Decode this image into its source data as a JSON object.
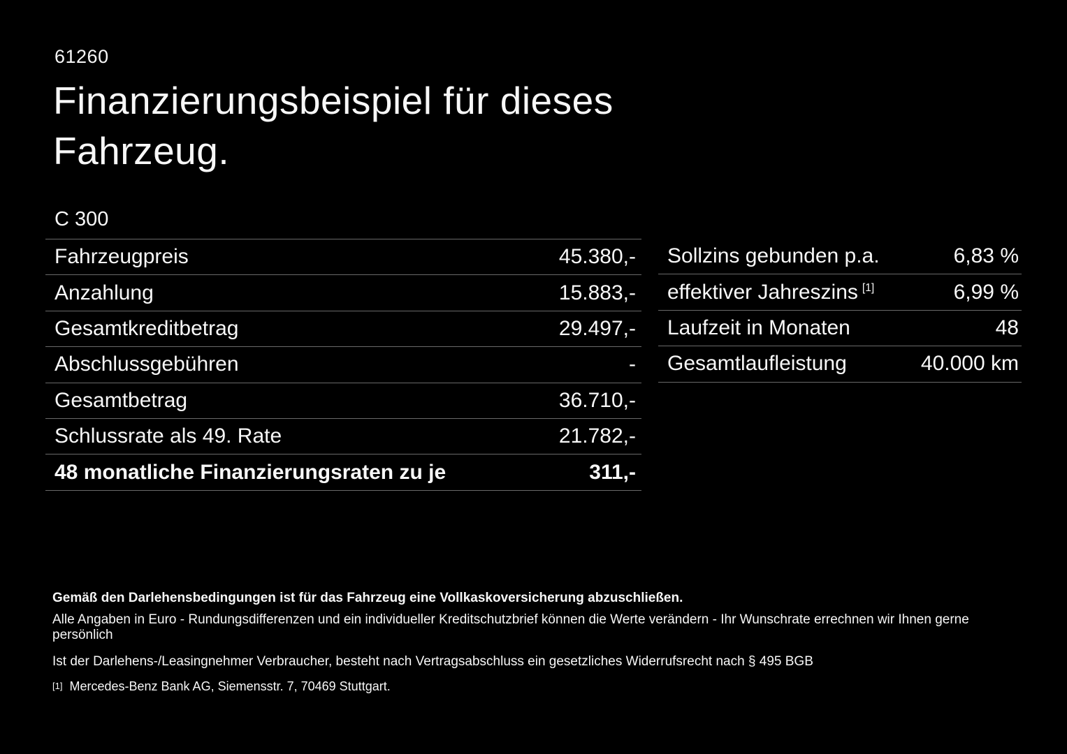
{
  "page": {
    "id_number": "61260",
    "title": "Finanzierungsbeispiel für dieses Fahrzeug.",
    "model": "C 300"
  },
  "finance_table": {
    "rows": [
      {
        "label": "Fahrzeugpreis",
        "value": "45.380,-"
      },
      {
        "label": "Anzahlung",
        "value": "15.883,-"
      },
      {
        "label": "Gesamtkreditbetrag",
        "value": "29.497,-"
      },
      {
        "label": "Abschlussgebühren",
        "value": "-"
      },
      {
        "label": "Gesamtbetrag",
        "value": "36.710,-"
      },
      {
        "label": "Schlussrate als 49. Rate",
        "value": "21.782,-"
      },
      {
        "label": "48 monatliche Finanzierungsraten zu je",
        "value": "311,-"
      }
    ]
  },
  "conditions_table": {
    "rows": [
      {
        "label": "Sollzins gebunden p.a.",
        "value": "6,83 %"
      },
      {
        "label": "effektiver Jahreszins",
        "sup": "[1]",
        "value": "6,99 %"
      },
      {
        "label": "Laufzeit in Monaten",
        "value": "48"
      },
      {
        "label": "Gesamtlaufleistung",
        "value": "40.000 km"
      }
    ]
  },
  "footer": {
    "insurance_note": "Gemäß den Darlehensbedingungen ist für das Fahrzeug eine Vollkaskoversicherung abzuschließen.",
    "rounding_note": "Alle Angaben in Euro - Rundungsdifferenzen und ein individueller Kreditschutzbrief können die Werte verändern - Ihr Wunschrate errechnen wir Ihnen gerne persönlich",
    "withdrawal_note": "Ist der Darlehens-/Leasingnehmer Verbraucher, besteht nach Vertragsabschluss ein gesetzliches Widerrufsrecht nach § 495 BGB",
    "footnote_marker": "[1]",
    "footnote_text": "Mercedes-Benz Bank AG, Siemensstr. 7, 70469 Stuttgart."
  },
  "colors": {
    "background": "#000000",
    "text": "#f7f7f7",
    "divider": "#6a6a6a"
  }
}
